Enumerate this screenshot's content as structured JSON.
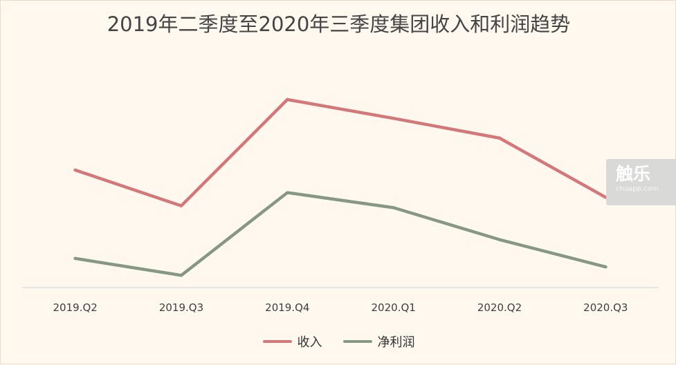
{
  "chart_data": {
    "type": "line",
    "title": "2019年二季度至2020年三季度集团收入和利润趋势",
    "categories": [
      "2019.Q2",
      "2019.Q3",
      "2019.Q4",
      "2020.Q1",
      "2020.Q2",
      "2020.Q3"
    ],
    "series": [
      {
        "name": "收入",
        "color": "#d57679",
        "values": [
          62.5,
          43.5,
          100,
          90,
          79.5,
          48
        ]
      },
      {
        "name": "净利润",
        "color": "#869883",
        "values": [
          15.5,
          6.5,
          50.5,
          42.5,
          25.5,
          11
        ]
      }
    ],
    "xlabel": "",
    "ylabel": "",
    "ylim": [
      0,
      100
    ],
    "grid": false,
    "legend_position": "bottom"
  },
  "watermark": {
    "mark": "触乐",
    "url": "chuapp.com"
  }
}
